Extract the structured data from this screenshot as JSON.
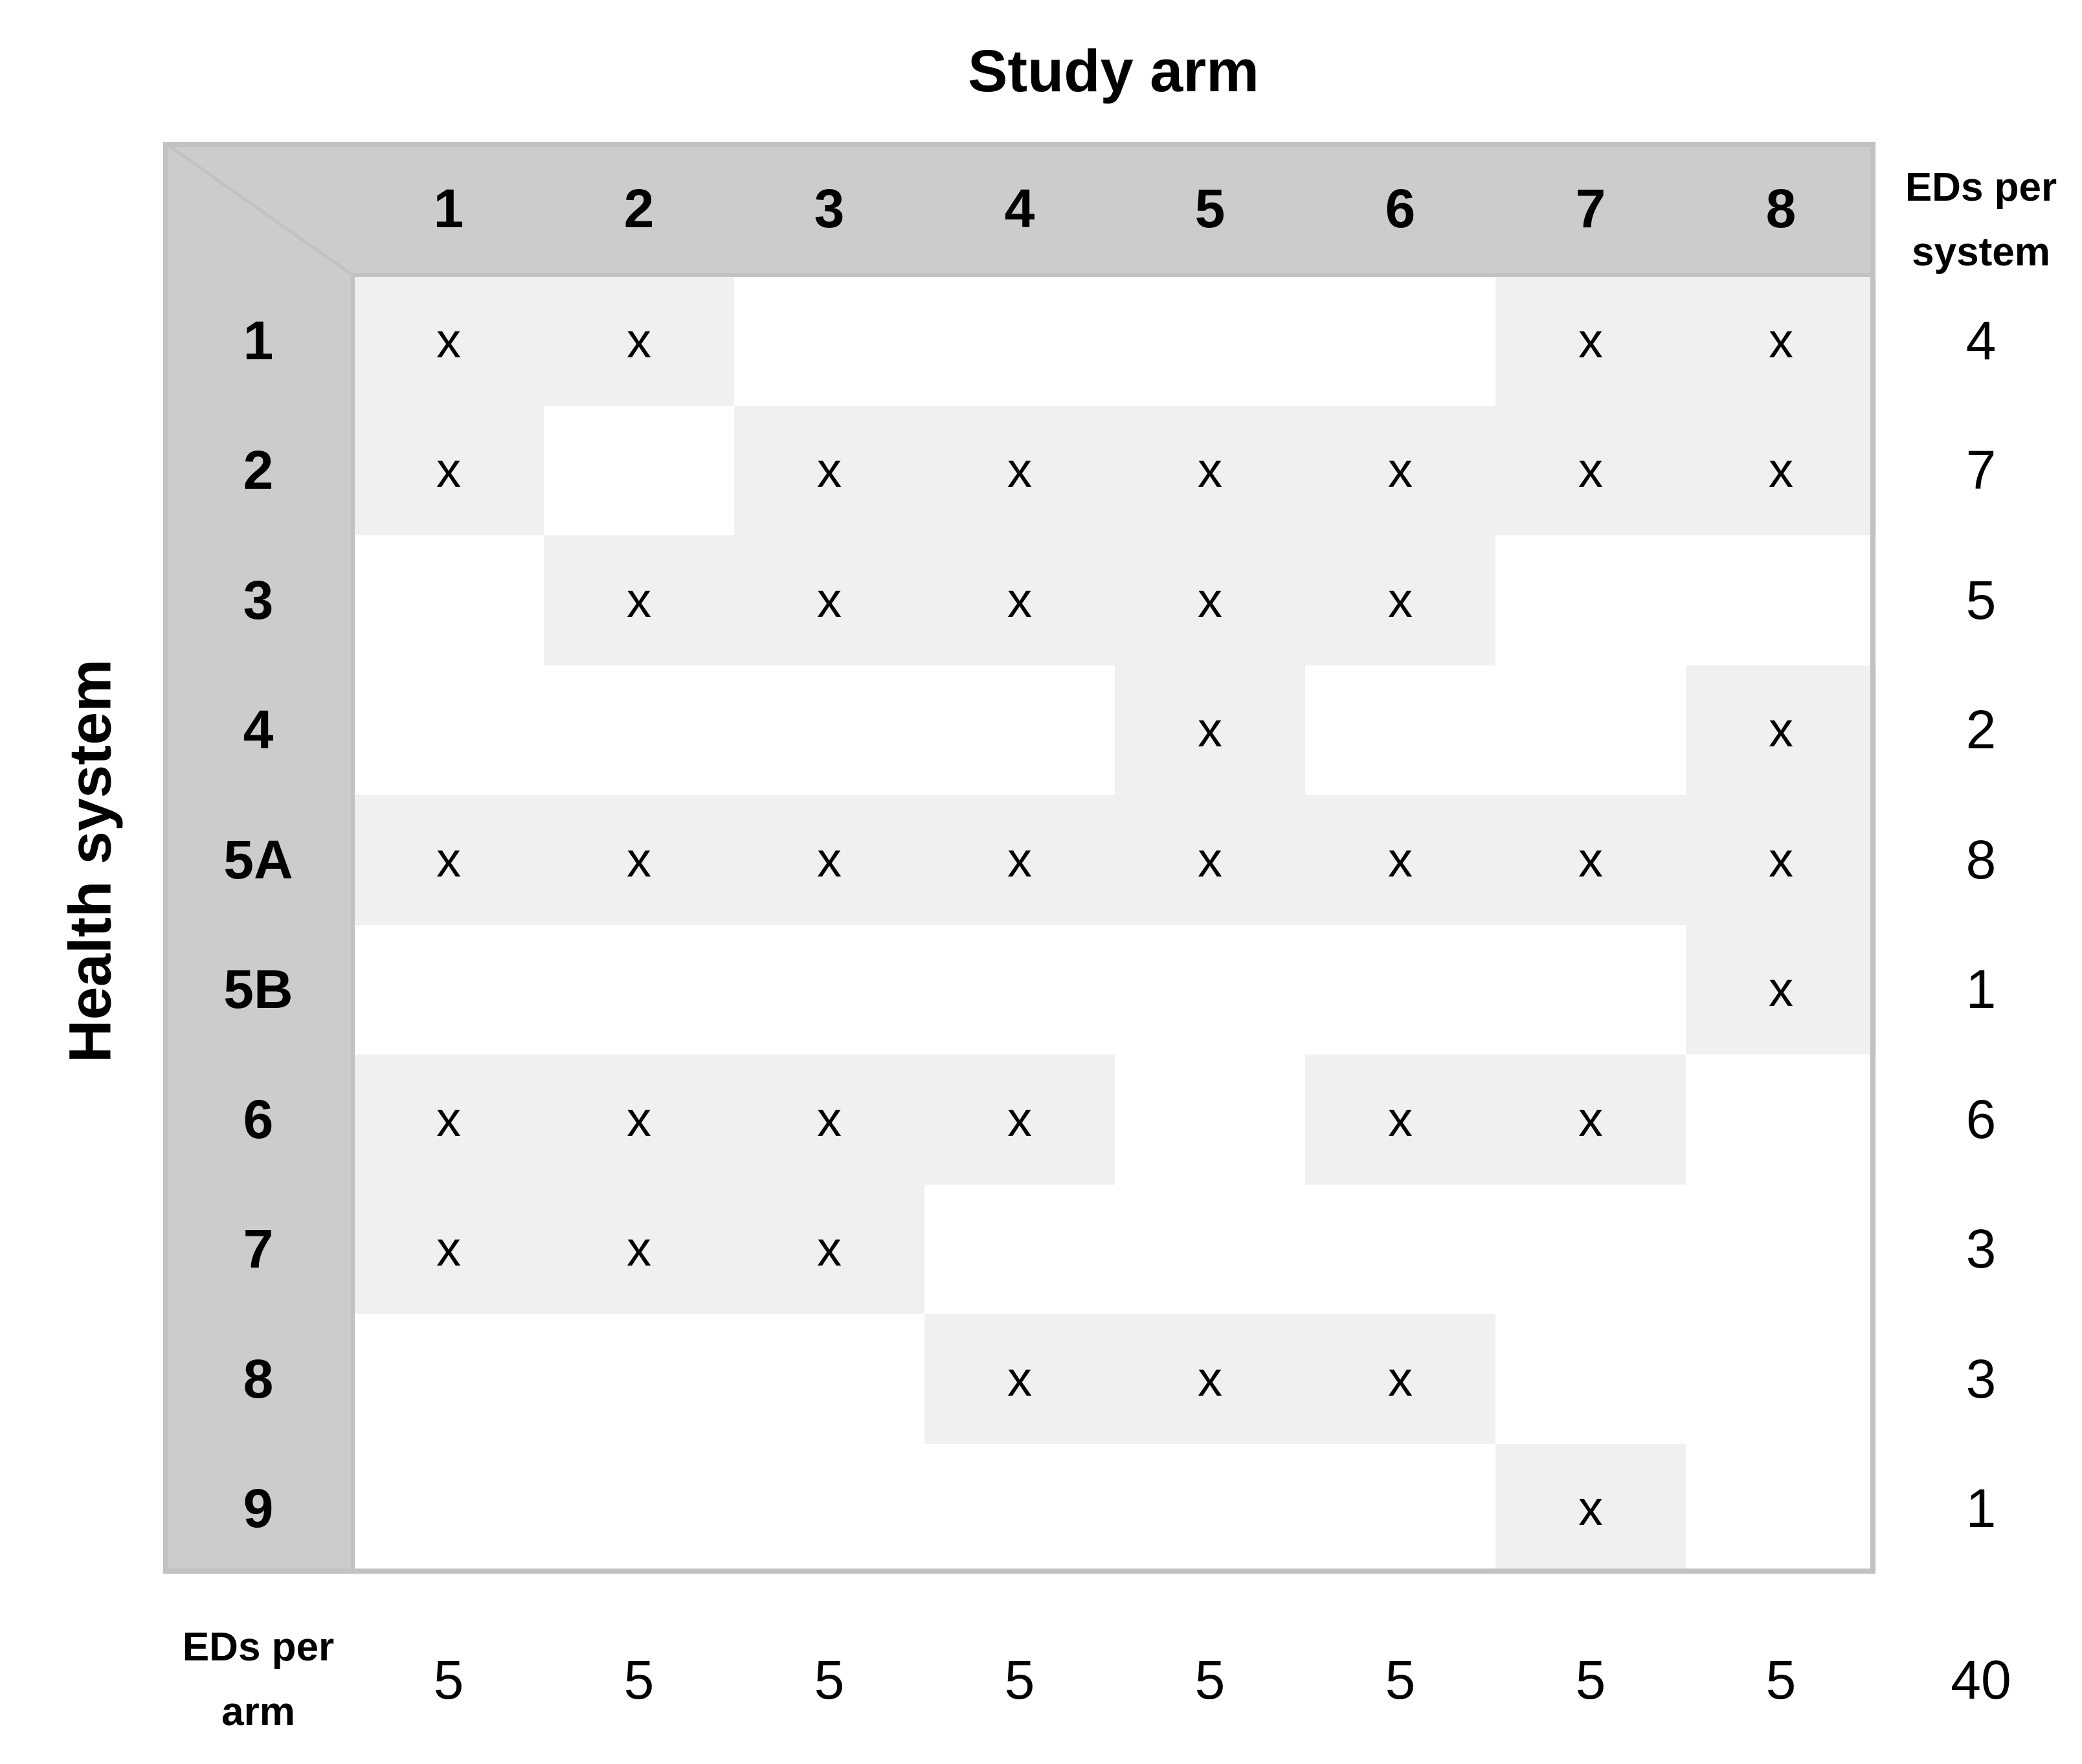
{
  "titles": {
    "study_arm": "Study arm",
    "health_system": "Health system",
    "eds_per_system": [
      "EDs per",
      "system"
    ],
    "eds_per_arm": [
      "EDs per",
      "arm"
    ]
  },
  "colors": {
    "header_fill": "#cccccc",
    "marked_cell_fill": "#f0f0f0",
    "border": "#c2c2c2"
  },
  "mark_symbol": "x",
  "arms": [
    "1",
    "2",
    "3",
    "4",
    "5",
    "6",
    "7",
    "8"
  ],
  "systems": [
    {
      "label": "1",
      "arms": [
        1,
        2,
        7,
        8
      ],
      "eds": "4"
    },
    {
      "label": "2",
      "arms": [
        1,
        3,
        4,
        5,
        6,
        7,
        8
      ],
      "eds": "7"
    },
    {
      "label": "3",
      "arms": [
        2,
        3,
        4,
        5,
        6
      ],
      "eds": "5"
    },
    {
      "label": "4",
      "arms": [
        5,
        8
      ],
      "eds": "2"
    },
    {
      "label": "5A",
      "arms": [
        1,
        2,
        3,
        4,
        5,
        6,
        7,
        8
      ],
      "eds": "8"
    },
    {
      "label": "5B",
      "arms": [
        8
      ],
      "eds": "1"
    },
    {
      "label": "6",
      "arms": [
        1,
        2,
        3,
        4,
        6,
        7
      ],
      "eds": "6"
    },
    {
      "label": "7",
      "arms": [
        1,
        2,
        3
      ],
      "eds": "3"
    },
    {
      "label": "8",
      "arms": [
        4,
        5,
        6
      ],
      "eds": "3"
    },
    {
      "label": "9",
      "arms": [
        7
      ],
      "eds": "1"
    }
  ],
  "eds_per_arm_values": [
    "5",
    "5",
    "5",
    "5",
    "5",
    "5",
    "5",
    "5"
  ],
  "grand_total": "40"
}
